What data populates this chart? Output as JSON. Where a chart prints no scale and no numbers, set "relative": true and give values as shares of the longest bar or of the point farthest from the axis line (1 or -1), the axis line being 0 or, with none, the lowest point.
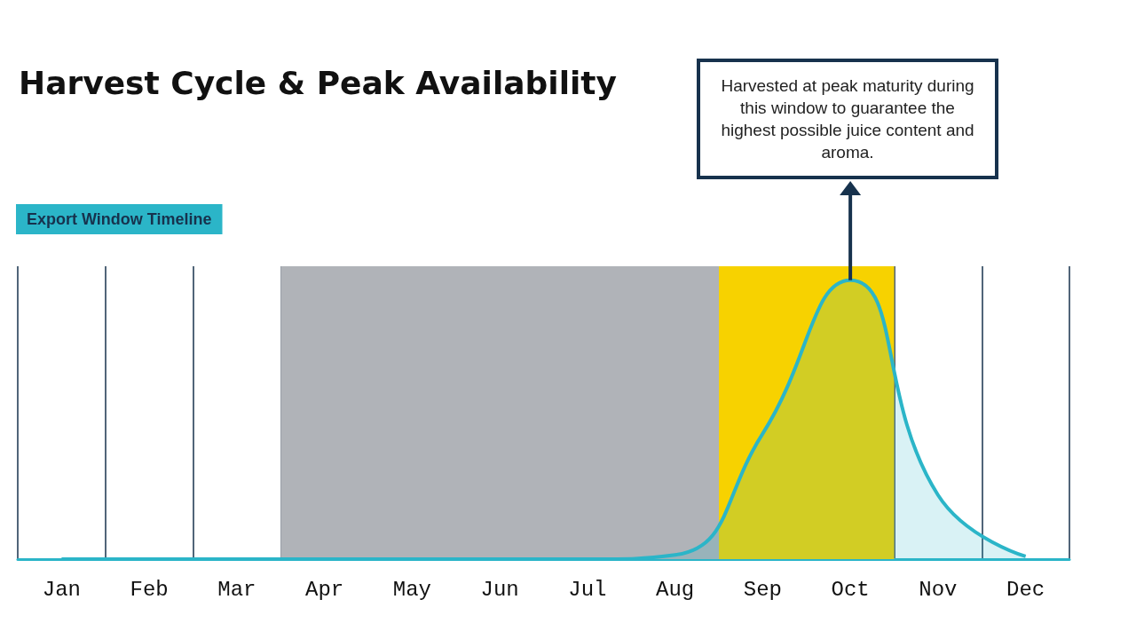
{
  "chart_data": {
    "type": "area",
    "title": "Harvest Cycle & Peak Availability",
    "subtitle": "Export Window Timeline",
    "categories": [
      "Jan",
      "Feb",
      "Mar",
      "Apr",
      "May",
      "Jun",
      "Jul",
      "Aug",
      "Sep",
      "Oct",
      "Nov",
      "Dec"
    ],
    "relative": true,
    "series": [
      {
        "color": "#2bb5c8",
        "values": [
          0,
          0,
          0,
          0,
          0,
          0,
          0,
          0.015,
          0.45,
          1,
          0.23,
          0.01
        ]
      }
    ],
    "grid": "x",
    "marker": "none",
    "line_style": "solid",
    "bands": [
      {
        "axis": "x",
        "from": "Apr",
        "to": "Aug",
        "color": "#b0b3b8"
      },
      {
        "axis": "x",
        "from": "Sep",
        "to": "Oct",
        "color": "#f7d200"
      }
    ],
    "annotations": [
      "Harvested at peak maturity during this window to guarantee the highest possible juice content and aroma."
    ]
  }
}
